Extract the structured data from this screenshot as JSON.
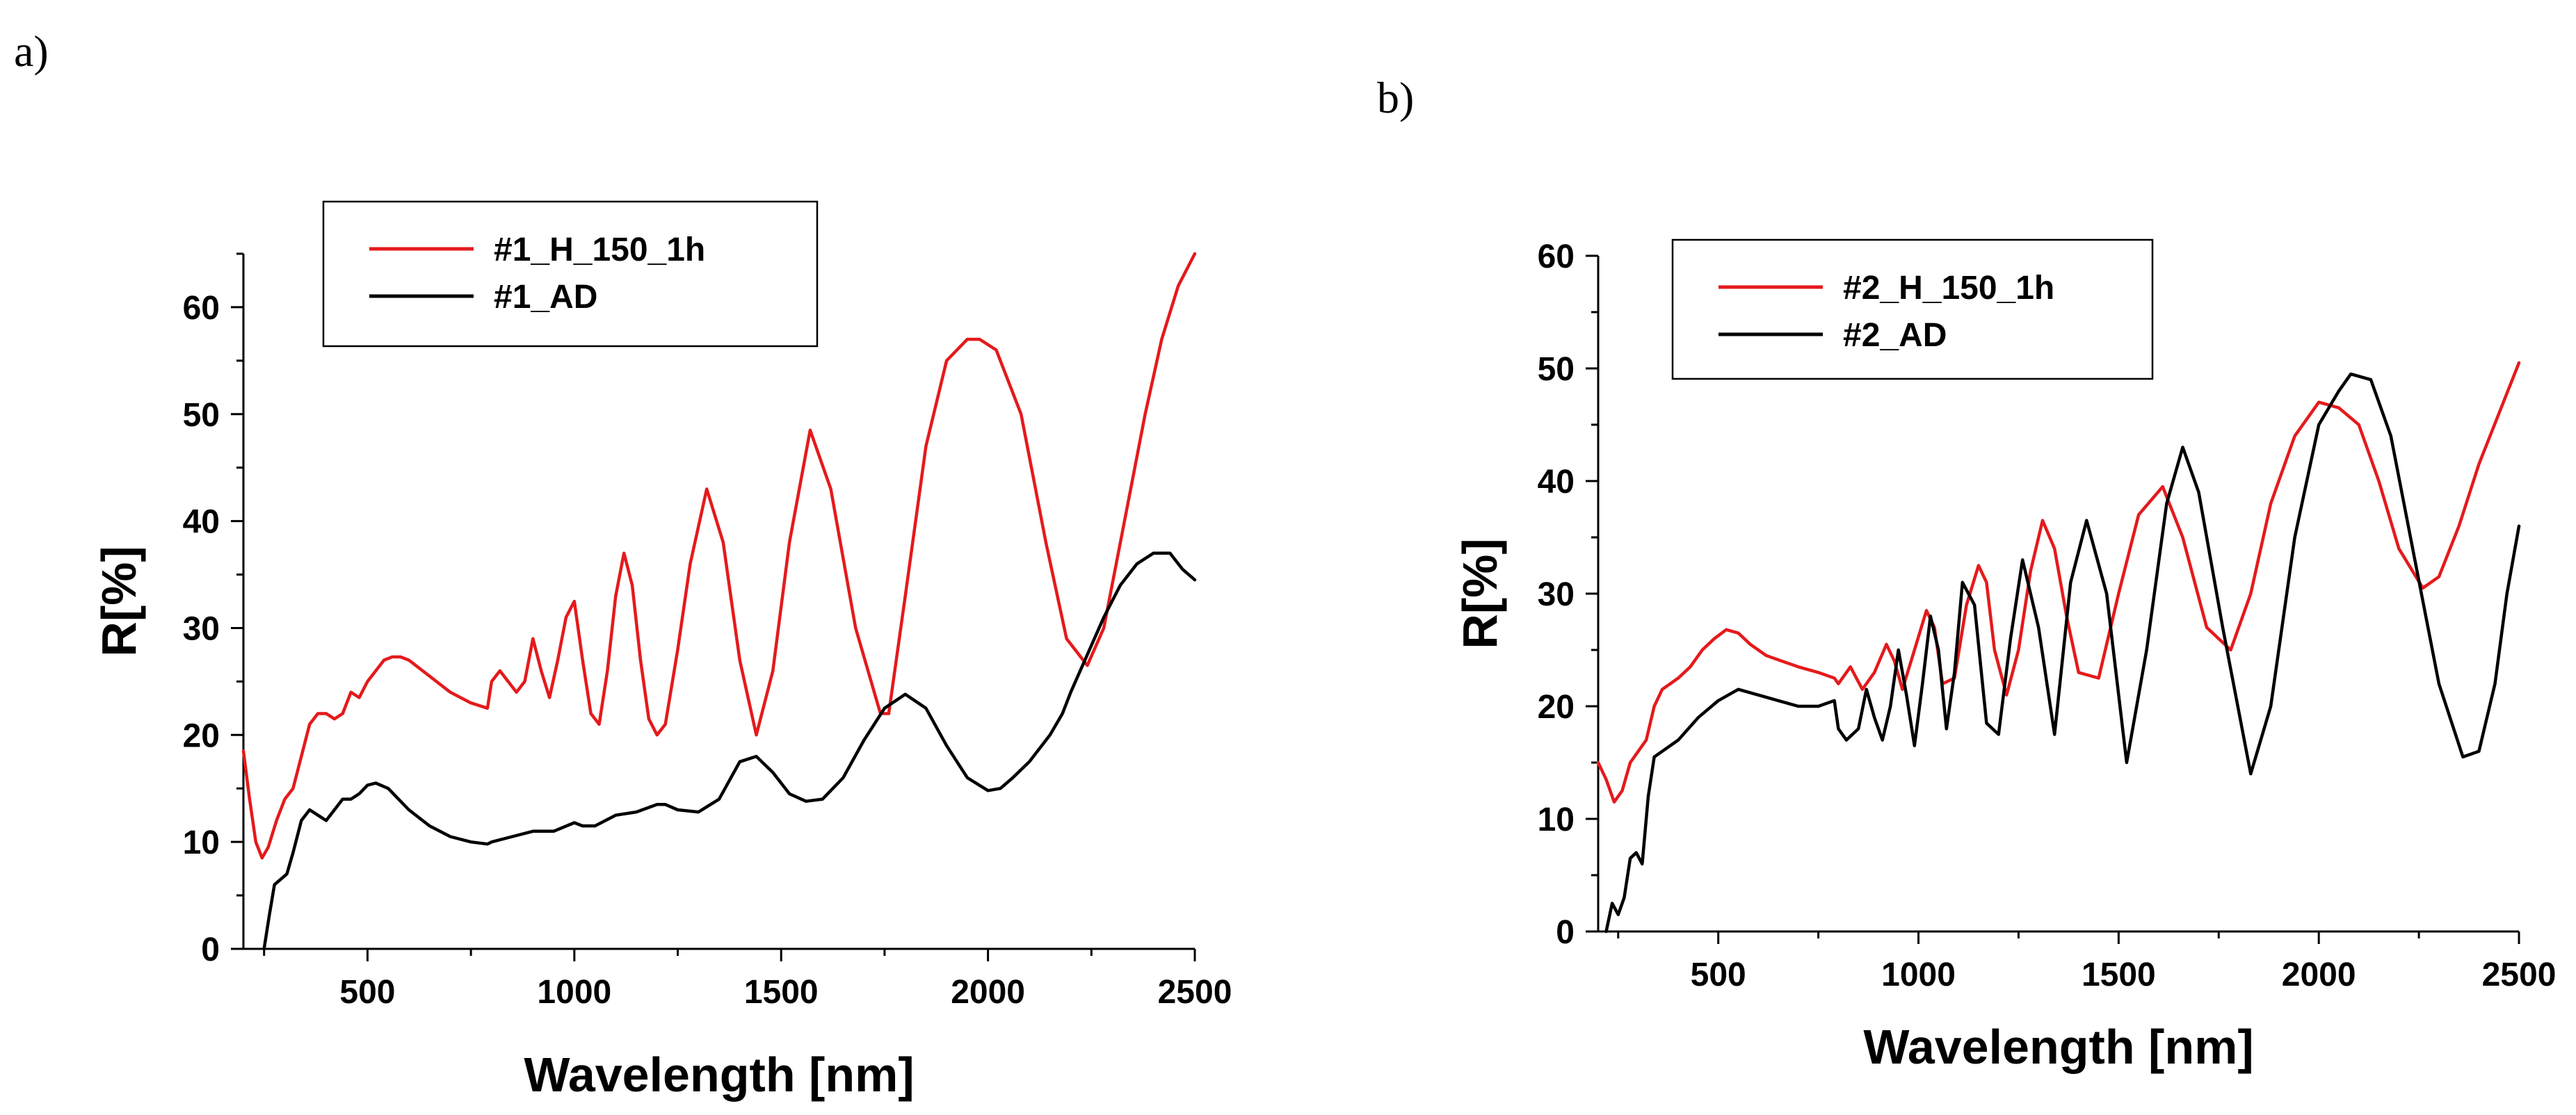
{
  "chart_data": [
    {
      "panel": "a)",
      "type": "line",
      "xlabel": "Wavelength [nm]",
      "ylabel": "R[%]",
      "xlim": [
        200,
        2500
      ],
      "ylim": [
        0,
        65
      ],
      "xticks": [
        500,
        1000,
        1500,
        2000,
        2500
      ],
      "yticks": [
        0,
        10,
        20,
        30,
        40,
        50,
        60
      ],
      "legend_position": "top-left",
      "series": [
        {
          "name": "#1_H_150_1h",
          "color": "#e41a1c",
          "x": [
            200,
            215,
            230,
            245,
            260,
            280,
            300,
            320,
            340,
            360,
            380,
            400,
            420,
            440,
            460,
            480,
            500,
            520,
            540,
            560,
            580,
            600,
            650,
            700,
            750,
            790,
            800,
            820,
            840,
            860,
            880,
            900,
            920,
            940,
            960,
            980,
            1000,
            1020,
            1040,
            1060,
            1080,
            1100,
            1120,
            1140,
            1160,
            1180,
            1200,
            1220,
            1250,
            1280,
            1320,
            1360,
            1400,
            1440,
            1480,
            1520,
            1570,
            1620,
            1680,
            1740,
            1760,
            1800,
            1850,
            1900,
            1950,
            1980,
            2020,
            2080,
            2140,
            2190,
            2240,
            2280,
            2330,
            2380,
            2420,
            2460,
            2500
          ],
          "y": [
            18.5,
            14,
            10,
            8.5,
            9.5,
            12,
            14,
            15,
            18,
            21,
            22,
            22,
            21.5,
            22,
            24,
            23.5,
            25,
            26,
            27,
            27.3,
            27.3,
            27,
            25.5,
            24,
            23,
            22.5,
            25,
            26,
            25,
            24,
            25,
            29,
            26,
            23.5,
            27,
            31,
            32.5,
            27,
            22,
            21,
            26,
            33,
            37,
            34,
            27,
            21.5,
            20,
            21,
            28,
            36,
            43,
            38,
            27,
            20,
            26,
            38,
            48.5,
            43,
            30,
            22,
            22,
            33,
            47,
            55,
            57,
            57,
            56,
            50,
            38,
            29,
            26.5,
            30,
            40,
            50,
            57,
            62,
            65
          ]
        },
        {
          "name": "#1_AD",
          "color": "#000000",
          "x": [
            250,
            262,
            275,
            290,
            305,
            320,
            340,
            360,
            380,
            400,
            420,
            440,
            460,
            480,
            500,
            520,
            550,
            600,
            650,
            700,
            750,
            790,
            800,
            850,
            900,
            950,
            1000,
            1020,
            1050,
            1100,
            1150,
            1200,
            1220,
            1250,
            1300,
            1350,
            1400,
            1440,
            1480,
            1520,
            1560,
            1600,
            1650,
            1700,
            1750,
            1800,
            1850,
            1900,
            1950,
            2000,
            2030,
            2060,
            2100,
            2150,
            2180,
            2200,
            2240,
            2280,
            2320,
            2360,
            2400,
            2440,
            2470,
            2500
          ],
          "y": [
            0,
            3,
            6,
            6.5,
            7,
            9,
            12,
            13,
            12.5,
            12,
            13,
            14,
            14,
            14.5,
            15.3,
            15.5,
            15,
            13,
            11.5,
            10.5,
            10,
            9.8,
            10,
            10.5,
            11,
            11,
            11.8,
            11.5,
            11.5,
            12.5,
            12.8,
            13.5,
            13.5,
            13,
            12.8,
            14,
            17.5,
            18,
            16.5,
            14.5,
            13.8,
            14,
            16,
            19.5,
            22.5,
            23.8,
            22.5,
            19,
            16,
            14.8,
            15,
            16,
            17.5,
            20,
            22,
            24,
            27.5,
            31,
            34,
            36,
            37,
            37,
            35.5,
            34.5
          ]
        }
      ]
    },
    {
      "panel": "b)",
      "type": "line",
      "xlabel": "Wavelength [nm]",
      "ylabel": "R[%]",
      "xlim": [
        200,
        2500
      ],
      "ylim": [
        0,
        60
      ],
      "xticks": [
        500,
        1000,
        1500,
        2000,
        2500
      ],
      "yticks": [
        0,
        10,
        20,
        30,
        40,
        50,
        60
      ],
      "legend_position": "top-left",
      "series": [
        {
          "name": "#2_H_150_1h",
          "color": "#e41a1c",
          "x": [
            200,
            220,
            240,
            260,
            280,
            300,
            320,
            340,
            360,
            380,
            400,
            430,
            460,
            490,
            520,
            550,
            580,
            620,
            660,
            700,
            750,
            790,
            800,
            830,
            860,
            890,
            920,
            940,
            960,
            990,
            1020,
            1040,
            1060,
            1090,
            1120,
            1150,
            1170,
            1190,
            1220,
            1250,
            1280,
            1310,
            1340,
            1370,
            1400,
            1450,
            1500,
            1550,
            1610,
            1660,
            1720,
            1780,
            1830,
            1880,
            1940,
            2000,
            2050,
            2100,
            2150,
            2200,
            2260,
            2300,
            2350,
            2400,
            2450,
            2500
          ],
          "y": [
            15,
            13.5,
            11.5,
            12.5,
            15,
            16,
            17,
            20,
            21.5,
            22,
            22.5,
            23.5,
            25,
            26,
            26.8,
            26.5,
            25.5,
            24.5,
            24,
            23.5,
            23,
            22.5,
            22,
            23.5,
            21.5,
            23,
            25.5,
            24,
            21.5,
            25,
            28.5,
            27,
            22,
            22.5,
            29,
            32.5,
            31,
            25,
            21,
            25,
            32,
            36.5,
            34,
            28,
            23,
            22.5,
            30,
            37,
            39.5,
            35,
            27,
            25,
            30,
            38,
            44,
            47,
            46.5,
            45,
            40,
            34,
            30.5,
            31.5,
            36,
            41.5,
            46,
            50.5
          ]
        },
        {
          "name": "#2_AD",
          "color": "#000000",
          "x": [
            220,
            235,
            250,
            265,
            280,
            295,
            310,
            325,
            340,
            360,
            400,
            450,
            500,
            550,
            600,
            650,
            700,
            750,
            790,
            800,
            820,
            850,
            870,
            890,
            910,
            930,
            950,
            970,
            990,
            1010,
            1030,
            1050,
            1070,
            1090,
            1110,
            1140,
            1170,
            1200,
            1230,
            1260,
            1300,
            1340,
            1380,
            1420,
            1470,
            1520,
            1570,
            1620,
            1660,
            1700,
            1760,
            1830,
            1880,
            1940,
            2000,
            2050,
            2080,
            2130,
            2180,
            2240,
            2300,
            2360,
            2400,
            2440,
            2470,
            2500
          ],
          "y": [
            0,
            2.5,
            1.5,
            3,
            6.5,
            7,
            6,
            12,
            15.5,
            16,
            17,
            19,
            20.5,
            21.5,
            21,
            20.5,
            20,
            20,
            20.5,
            18,
            17,
            18,
            21.5,
            19,
            17,
            20,
            25,
            21,
            16.5,
            22,
            28,
            25,
            18,
            23,
            31,
            29,
            18.5,
            17.5,
            26,
            33,
            27,
            17.5,
            31,
            36.5,
            30,
            15,
            25,
            38,
            43,
            39,
            27,
            14,
            20,
            35,
            45,
            48,
            49.5,
            49,
            44,
            33,
            22,
            15.5,
            16,
            22,
            30,
            36
          ]
        }
      ]
    }
  ]
}
